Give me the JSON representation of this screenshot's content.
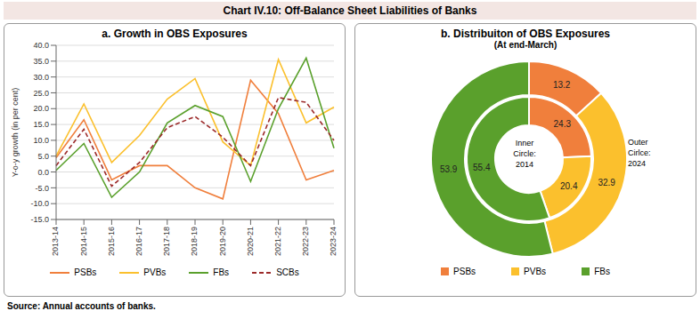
{
  "figure_title": "Chart IV.10: Off-Balance Sheet Liabilities of Banks",
  "source": "Source: Annual accounts of banks.",
  "chart_data": [
    {
      "type": "line",
      "title": "a. Growth in OBS Exposures",
      "y_label": "Y-o-y growth (in per cent)",
      "categories": [
        "2013-14",
        "2014-15",
        "2015-16",
        "2016-17",
        "2017-18",
        "2018-19",
        "2019-20",
        "2020-21",
        "2021-22",
        "2022-23",
        "2023-24"
      ],
      "series": [
        {
          "name": "PSBs",
          "color": "#f07f3c",
          "line_style": "solid",
          "values": [
            4.5,
            16.5,
            -2.5,
            2.0,
            2.0,
            -5.0,
            -8.5,
            29.0,
            18.5,
            -2.5,
            0.5
          ]
        },
        {
          "name": "PVBs",
          "color": "#fbc02d",
          "line_style": "solid",
          "values": [
            5.0,
            21.5,
            3.0,
            11.5,
            23.0,
            29.5,
            9.5,
            2.0,
            35.5,
            15.5,
            20.5
          ]
        },
        {
          "name": "FBs",
          "color": "#5aa02c",
          "line_style": "solid",
          "values": [
            0.5,
            9.0,
            -8.0,
            0.0,
            15.5,
            21.0,
            17.5,
            -3.0,
            20.0,
            36.0,
            7.5
          ]
        },
        {
          "name": "SCBs",
          "color": "#9c2a2a",
          "line_style": "dashed",
          "values": [
            2.0,
            13.5,
            -4.5,
            3.0,
            14.0,
            17.5,
            11.0,
            2.0,
            23.5,
            22.0,
            10.0
          ]
        }
      ],
      "ylim": [
        -15,
        40
      ],
      "yticks": [
        {
          "value": -15,
          "label": "-15.0"
        },
        {
          "value": -10,
          "label": "-10.0"
        },
        {
          "value": -5,
          "label": "-5.0"
        },
        {
          "value": 0,
          "label": "0.0"
        },
        {
          "value": 5,
          "label": "5.0"
        },
        {
          "value": 10,
          "label": "10.0"
        },
        {
          "value": 15,
          "label": "15.0"
        },
        {
          "value": 20,
          "label": "20.0"
        },
        {
          "value": 25,
          "label": "25.0"
        },
        {
          "value": 30,
          "label": "30.0"
        },
        {
          "value": 35,
          "label": "35.0"
        },
        {
          "value": 40,
          "label": "40.0"
        }
      ],
      "grid": true,
      "legend": "bottom"
    },
    {
      "type": "donut",
      "title": "b. Distribuiton of OBS Exposures",
      "subtitle": "(At end-March)",
      "categories": [
        "PSBs",
        "PVBs",
        "FBs"
      ],
      "colors": [
        "#f07f3c",
        "#fbc02d",
        "#5aa02c"
      ],
      "rings": [
        {
          "label": "Inner Circle: 2014",
          "values": [
            24.3,
            20.4,
            55.4
          ]
        },
        {
          "label": "Outer Cirlce: 2024",
          "values": [
            13.2,
            32.9,
            53.9
          ]
        }
      ],
      "data_labels": true,
      "legend": "bottom"
    }
  ]
}
